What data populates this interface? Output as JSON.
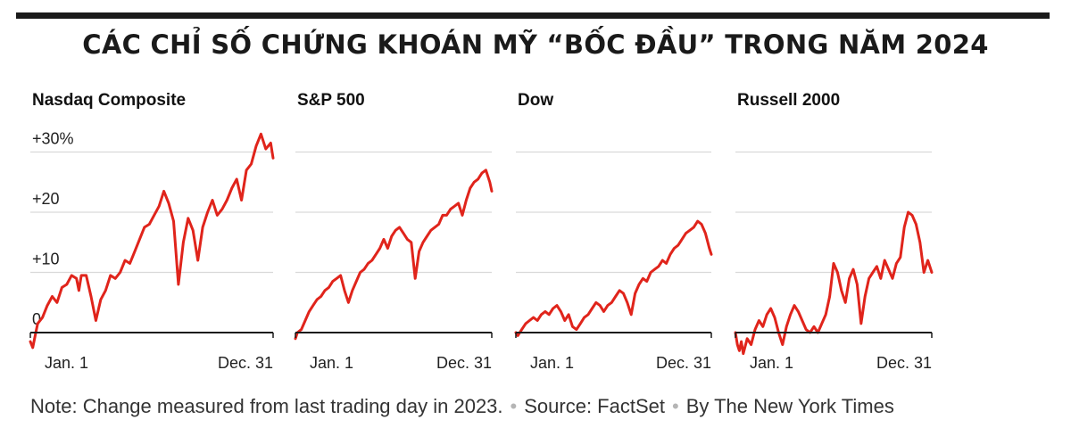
{
  "title": "CÁC CHỈ SỐ CHỨNG KHOÁN MỸ “BỐC ĐẦU” TRONG NĂM 2024",
  "footer": {
    "note": "Note: Change measured from last trading day in 2023.",
    "separator": "•",
    "source": "Source: FactSet",
    "byline": "By The New York Times"
  },
  "colors": {
    "line": "#e0241b",
    "grid": "#d9d9d9",
    "axis": "#1a1a1a",
    "text": "#222222"
  },
  "chart_data": [
    {
      "type": "line",
      "title": "Nasdaq Composite",
      "ylim": [
        -4,
        36
      ],
      "ytick_labels": [
        "0",
        "+10",
        "+20",
        "+30%"
      ],
      "yticks": [
        0,
        10,
        20,
        30
      ],
      "xtick_labels": [
        "Jan. 1",
        "Dec. 31"
      ],
      "grid": true,
      "series": [
        {
          "x": [
            0.0,
            0.01,
            0.02,
            0.03,
            0.05,
            0.07,
            0.09,
            0.11,
            0.13,
            0.15,
            0.17,
            0.19,
            0.2,
            0.21,
            0.23,
            0.25,
            0.27,
            0.29,
            0.31,
            0.33,
            0.35,
            0.37,
            0.39,
            0.41,
            0.43,
            0.45,
            0.47,
            0.49,
            0.51,
            0.53,
            0.55,
            0.57,
            0.59,
            0.61,
            0.63,
            0.65,
            0.67,
            0.69,
            0.71,
            0.73,
            0.75,
            0.77,
            0.79,
            0.81,
            0.83,
            0.85,
            0.87,
            0.89,
            0.91,
            0.93,
            0.95,
            0.97,
            0.99,
            1.0
          ],
          "y": [
            -1.5,
            -2.5,
            -0.5,
            1.5,
            2.5,
            4.5,
            6.0,
            5.0,
            7.5,
            8.0,
            9.5,
            9.0,
            7.0,
            9.5,
            9.5,
            6.0,
            2.0,
            5.5,
            7.0,
            9.5,
            9.0,
            10.0,
            12.0,
            11.5,
            13.5,
            15.5,
            17.5,
            18.0,
            19.5,
            21.0,
            23.5,
            21.5,
            18.5,
            8.0,
            15.0,
            19.0,
            17.0,
            12.0,
            17.5,
            20.0,
            22.0,
            19.5,
            20.5,
            22.0,
            24.0,
            25.5,
            22.0,
            27.0,
            28.0,
            31.0,
            33.0,
            30.5,
            31.5,
            29.0
          ]
        }
      ]
    },
    {
      "type": "line",
      "title": "S&P 500",
      "ylim": [
        -4,
        36
      ],
      "yticks": [
        0,
        10,
        20,
        30
      ],
      "xtick_labels": [
        "Jan. 1",
        "Dec. 31"
      ],
      "grid": true,
      "series": [
        {
          "x": [
            0.0,
            0.01,
            0.03,
            0.05,
            0.07,
            0.09,
            0.11,
            0.13,
            0.15,
            0.17,
            0.19,
            0.21,
            0.23,
            0.25,
            0.27,
            0.29,
            0.31,
            0.33,
            0.35,
            0.37,
            0.39,
            0.41,
            0.43,
            0.45,
            0.47,
            0.49,
            0.51,
            0.53,
            0.55,
            0.57,
            0.59,
            0.61,
            0.63,
            0.65,
            0.67,
            0.69,
            0.71,
            0.73,
            0.75,
            0.77,
            0.79,
            0.81,
            0.83,
            0.85,
            0.87,
            0.89,
            0.91,
            0.93,
            0.95,
            0.97,
            0.99,
            1.0
          ],
          "y": [
            -1.0,
            0.0,
            0.5,
            2.0,
            3.5,
            4.5,
            5.5,
            6.0,
            7.0,
            7.5,
            8.5,
            9.0,
            9.5,
            7.0,
            5.0,
            7.0,
            8.5,
            10.0,
            10.5,
            11.5,
            12.0,
            13.0,
            14.0,
            15.5,
            14.0,
            16.0,
            17.0,
            17.5,
            16.5,
            15.5,
            15.0,
            9.0,
            13.5,
            15.0,
            16.0,
            17.0,
            17.5,
            18.0,
            19.5,
            19.5,
            20.5,
            21.0,
            21.5,
            19.5,
            22.0,
            24.0,
            25.0,
            25.5,
            26.5,
            27.0,
            25.0,
            23.5
          ]
        }
      ]
    },
    {
      "type": "line",
      "title": "Dow",
      "ylim": [
        -4,
        36
      ],
      "yticks": [
        0,
        10,
        20,
        30
      ],
      "xtick_labels": [
        "Jan. 1",
        "Dec. 31"
      ],
      "grid": true,
      "series": [
        {
          "x": [
            0.0,
            0.01,
            0.03,
            0.05,
            0.07,
            0.09,
            0.11,
            0.13,
            0.15,
            0.17,
            0.19,
            0.21,
            0.23,
            0.25,
            0.27,
            0.29,
            0.31,
            0.33,
            0.35,
            0.37,
            0.39,
            0.41,
            0.43,
            0.45,
            0.47,
            0.49,
            0.51,
            0.53,
            0.55,
            0.57,
            0.59,
            0.61,
            0.63,
            0.65,
            0.67,
            0.69,
            0.71,
            0.73,
            0.75,
            0.77,
            0.79,
            0.81,
            0.83,
            0.85,
            0.87,
            0.89,
            0.91,
            0.93,
            0.95,
            0.97,
            0.99,
            1.0
          ],
          "y": [
            0.0,
            -0.5,
            0.5,
            1.5,
            2.0,
            2.5,
            2.0,
            3.0,
            3.5,
            3.0,
            4.0,
            4.5,
            3.5,
            2.0,
            3.0,
            1.0,
            0.5,
            1.5,
            2.5,
            3.0,
            4.0,
            5.0,
            4.5,
            3.5,
            4.5,
            5.0,
            6.0,
            7.0,
            6.5,
            5.0,
            3.0,
            6.5,
            8.0,
            9.0,
            8.5,
            10.0,
            10.5,
            11.0,
            12.0,
            11.5,
            13.0,
            14.0,
            14.5,
            15.5,
            16.5,
            17.0,
            17.5,
            18.5,
            18.0,
            16.5,
            14.0,
            13.0
          ]
        }
      ]
    },
    {
      "type": "line",
      "title": "Russell 2000",
      "ylim": [
        -4,
        36
      ],
      "yticks": [
        0,
        10,
        20,
        30
      ],
      "xtick_labels": [
        "Jan. 1",
        "Dec. 31"
      ],
      "grid": true,
      "series": [
        {
          "x": [
            0.0,
            0.01,
            0.02,
            0.03,
            0.04,
            0.06,
            0.08,
            0.1,
            0.12,
            0.14,
            0.16,
            0.18,
            0.2,
            0.22,
            0.24,
            0.26,
            0.28,
            0.3,
            0.32,
            0.34,
            0.36,
            0.38,
            0.4,
            0.42,
            0.44,
            0.46,
            0.48,
            0.5,
            0.52,
            0.54,
            0.56,
            0.58,
            0.6,
            0.62,
            0.64,
            0.66,
            0.68,
            0.7,
            0.72,
            0.74,
            0.76,
            0.78,
            0.8,
            0.82,
            0.84,
            0.86,
            0.88,
            0.9,
            0.92,
            0.94,
            0.96,
            0.98,
            1.0
          ],
          "y": [
            0.0,
            -2.0,
            -3.0,
            -1.5,
            -3.5,
            -1.0,
            -2.0,
            0.5,
            2.0,
            1.0,
            3.0,
            4.0,
            2.5,
            0.0,
            -2.0,
            1.0,
            3.0,
            4.5,
            3.5,
            2.0,
            0.5,
            0.0,
            1.0,
            0.0,
            1.5,
            3.0,
            6.0,
            11.5,
            10.0,
            7.0,
            5.0,
            9.0,
            10.5,
            8.0,
            1.5,
            6.0,
            9.0,
            10.0,
            11.0,
            9.0,
            12.0,
            10.5,
            9.0,
            11.5,
            12.5,
            17.5,
            20.0,
            19.5,
            18.0,
            15.0,
            10.0,
            12.0,
            10.0
          ]
        }
      ]
    }
  ]
}
